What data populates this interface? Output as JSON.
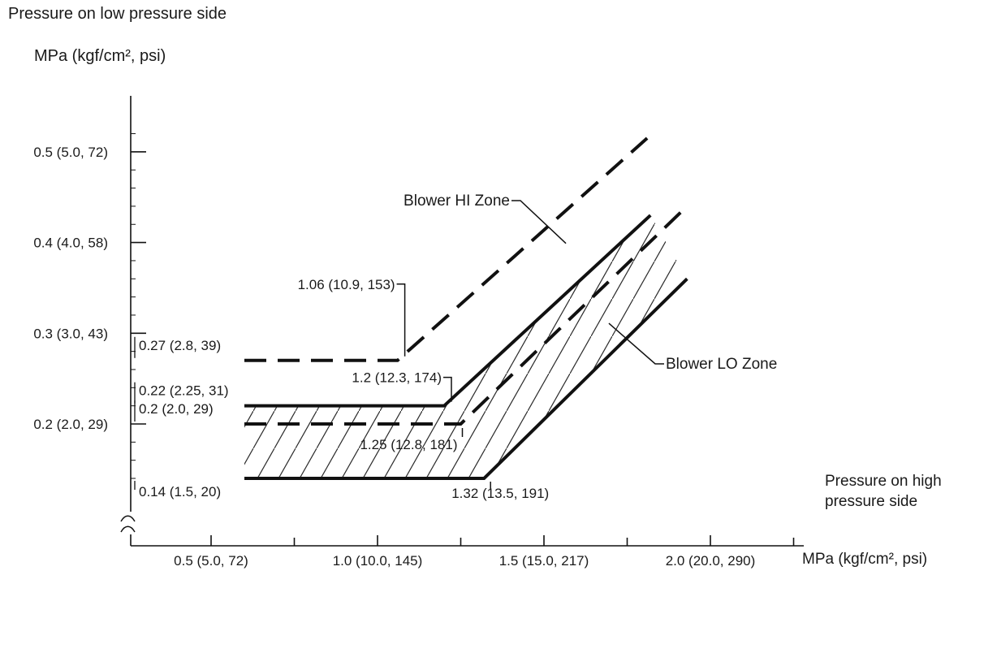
{
  "chart_data": {
    "type": "line",
    "y_axis": {
      "side_title": "Pressure on low pressure side",
      "unit_label": "MPa (kgf/cm², psi)",
      "range": [
        0.13,
        0.55
      ],
      "axis_break": true,
      "minor_tick_step": 0.02,
      "ticks": [
        {
          "value": 0.5,
          "label": "0.5 (5.0, 72)"
        },
        {
          "value": 0.4,
          "label": "0.4 (4.0, 58)"
        },
        {
          "value": 0.3,
          "label": "0.3 (3.0, 43)"
        },
        {
          "value": 0.2,
          "label": "0.2 (2.0, 29)"
        }
      ]
    },
    "x_axis": {
      "side_title": "Pressure on high pressure side",
      "unit_label": "MPa (kgf/cm², psi)",
      "range": [
        0.26,
        2.28
      ],
      "ticks": [
        {
          "value": 0.5,
          "label": "0.5 (5.0, 72)"
        },
        {
          "value": 0.75,
          "label": ""
        },
        {
          "value": 1.0,
          "label": "1.0 (10.0, 145)"
        },
        {
          "value": 1.25,
          "label": ""
        },
        {
          "value": 1.5,
          "label": "1.5 (15.0, 217)"
        },
        {
          "value": 1.75,
          "label": ""
        },
        {
          "value": 2.0,
          "label": "2.0 (20.0, 290)"
        },
        {
          "value": 2.25,
          "label": ""
        }
      ]
    },
    "series": [
      {
        "name": "blower-hi-upper-boundary",
        "style": "dashed",
        "points": [
          [
            0.6,
            0.27
          ],
          [
            1.06,
            0.27
          ],
          [
            1.81,
            0.515
          ]
        ]
      },
      {
        "name": "blower-hi-lower-boundary",
        "style": "dashed",
        "points": [
          [
            0.6,
            0.2
          ],
          [
            1.25,
            0.2
          ],
          [
            1.93,
            0.44
          ]
        ]
      },
      {
        "name": "blower-lo-upper-boundary",
        "style": "solid",
        "points": [
          [
            0.6,
            0.22
          ],
          [
            1.2,
            0.22
          ],
          [
            1.82,
            0.43
          ]
        ]
      },
      {
        "name": "blower-lo-lower-boundary",
        "style": "solid",
        "points": [
          [
            0.6,
            0.14
          ],
          [
            1.32,
            0.14
          ],
          [
            1.93,
            0.36
          ]
        ]
      }
    ],
    "hatched_zone": {
      "name": "blower-lo-zone",
      "polygon": [
        [
          0.6,
          0.14
        ],
        [
          1.32,
          0.14
        ],
        [
          1.93,
          0.36
        ],
        [
          1.82,
          0.43
        ],
        [
          1.2,
          0.22
        ],
        [
          0.6,
          0.22
        ]
      ]
    },
    "level_labels": [
      {
        "value": 0.27,
        "label": "0.27 (2.8, 39)",
        "placement": "above"
      },
      {
        "value": 0.22,
        "label": "0.22 (2.25, 31)",
        "placement": "above"
      },
      {
        "value": 0.2,
        "label": "0.2 (2.0, 29)",
        "placement": "above"
      },
      {
        "value": 0.14,
        "label": "0.14 (1.5, 20)",
        "placement": "below"
      }
    ],
    "corner_labels": [
      {
        "x": 1.06,
        "y": 0.27,
        "label": "1.06 (10.9, 153)"
      },
      {
        "x": 1.2,
        "y": 0.22,
        "label": "1.2 (12.3, 174)"
      },
      {
        "x": 1.25,
        "y": 0.2,
        "label": "1.25 (12.8, 181)"
      },
      {
        "x": 1.32,
        "y": 0.14,
        "label": "1.32 (13.5, 191)"
      }
    ],
    "zone_labels": [
      {
        "label": "Blower HI Zone",
        "target": [
          1.566,
          0.399
        ]
      },
      {
        "label": "Blower LO Zone",
        "target": [
          1.695,
          0.311
        ]
      }
    ],
    "colors": {
      "line": "#111111",
      "text": "#1a1a1a",
      "background": "#ffffff"
    }
  }
}
